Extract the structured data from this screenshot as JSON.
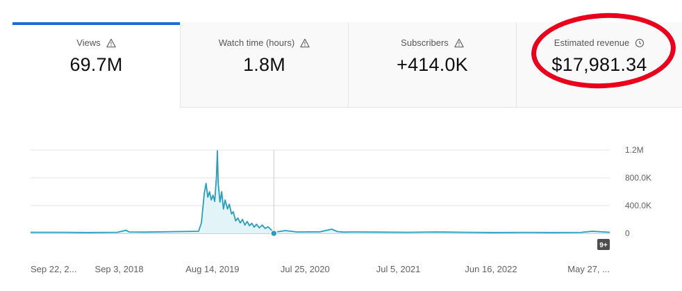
{
  "tabs": [
    {
      "label": "Views",
      "value": "69.7M",
      "icon": "warning-icon"
    },
    {
      "label": "Watch time (hours)",
      "value": "1.8M",
      "icon": "warning-icon"
    },
    {
      "label": "Subscribers",
      "value": "+414.0K",
      "icon": "warning-icon"
    },
    {
      "label": "Estimated revenue",
      "value": "$17,981.34",
      "icon": "clock-icon"
    }
  ],
  "annotation": {
    "color": "#e8001c",
    "target": "Estimated revenue"
  },
  "chart_data": {
    "type": "area",
    "metric": "Views",
    "y_tick_labels": [
      "1.2M",
      "800.0K",
      "400.0K",
      "0"
    ],
    "y_ticks": [
      1200000,
      800000,
      400000,
      0
    ],
    "ylim": [
      0,
      1200000
    ],
    "x_tick_labels": [
      "Sep 22, 2...",
      "Sep 3, 2018",
      "Aug 14, 2019",
      "Jul 25, 2020",
      "Jul 5, 2021",
      "Jun 16, 2022",
      "May 27, ..."
    ],
    "x_tick_positions": [
      0,
      0.153,
      0.314,
      0.474,
      0.635,
      0.795,
      0.947
    ],
    "x": [
      0,
      0.05,
      0.1,
      0.15,
      0.165,
      0.17,
      0.2,
      0.25,
      0.29,
      0.295,
      0.3,
      0.303,
      0.306,
      0.309,
      0.312,
      0.315,
      0.318,
      0.321,
      0.3225,
      0.324,
      0.327,
      0.33,
      0.333,
      0.336,
      0.34,
      0.343,
      0.347,
      0.35,
      0.354,
      0.358,
      0.362,
      0.366,
      0.37,
      0.374,
      0.378,
      0.382,
      0.386,
      0.39,
      0.395,
      0.4,
      0.405,
      0.41,
      0.42,
      0.44,
      0.46,
      0.5,
      0.52,
      0.53,
      0.54,
      0.56,
      0.6,
      0.65,
      0.7,
      0.75,
      0.8,
      0.85,
      0.9,
      0.95,
      0.97,
      1.0
    ],
    "values": [
      15000,
      15000,
      12000,
      15000,
      45000,
      20000,
      18000,
      25000,
      30000,
      150000,
      580000,
      720000,
      520000,
      600000,
      480000,
      550000,
      460000,
      820000,
      1190000,
      720000,
      450000,
      600000,
      350000,
      480000,
      350000,
      420000,
      280000,
      310000,
      180000,
      220000,
      150000,
      200000,
      120000,
      170000,
      110000,
      145000,
      90000,
      130000,
      80000,
      120000,
      70000,
      95000,
      15000,
      40000,
      20000,
      22000,
      60000,
      25000,
      18000,
      20000,
      18000,
      15000,
      20000,
      15000,
      12000,
      14000,
      12000,
      14000,
      30000,
      15000
    ],
    "hover_marker_x": 0.42,
    "hover_marker_value": 0,
    "badge": "9+",
    "line_color": "#2a9dbd",
    "fill_color": "#e3f4f9"
  }
}
